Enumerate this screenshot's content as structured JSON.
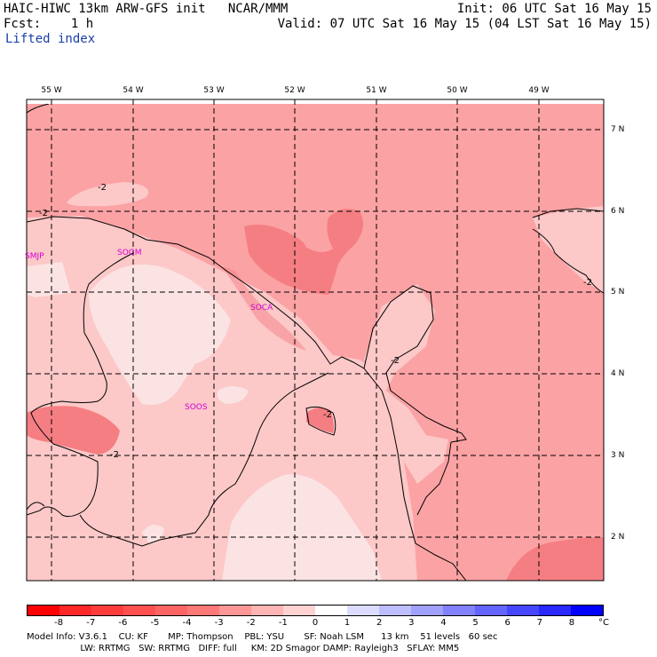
{
  "header": {
    "left_line1": "HAIC-HIWC 13km ARW-GFS init   NCAR/MMM",
    "left_line2": "Fcst:    1 h",
    "left_line3": "Lifted index",
    "right_line1": "Init: 06 UTC Sat 16 May 15",
    "right_line2": "Valid: 07 UTC Sat 16 May 15 (04 LST Sat 16 May 15)"
  },
  "map": {
    "longitude_labels": [
      "55 W",
      "54 W",
      "53 W",
      "52 W",
      "51 W",
      "50 W",
      "49 W"
    ],
    "latitude_labels": [
      "7 N",
      "6 N",
      "5 N",
      "4 N",
      "3 N",
      "2 N"
    ],
    "stations": [
      "SMJP",
      "SOGM",
      "SOCA",
      "SOOS"
    ],
    "contour_labels": [
      "-2",
      "-2",
      "-2",
      "-2",
      "-2",
      "-2"
    ]
  },
  "legend": {
    "labels": [
      "-8",
      "-7",
      "-6",
      "-5",
      "-4",
      "-3",
      "-2",
      "-1",
      "0",
      "1",
      "2",
      "3",
      "4",
      "5",
      "6",
      "7",
      "8"
    ],
    "unit": "°C",
    "colors": [
      "#ff0000",
      "#ff2828",
      "#ff3c3c",
      "#ff5050",
      "#ff6464",
      "#ff7878",
      "#ff9696",
      "#ffb4b4",
      "#ffd2d2",
      "#ffffff",
      "#dcdcff",
      "#bebeff",
      "#a0a0ff",
      "#8282ff",
      "#6464ff",
      "#4646ff",
      "#2828ff",
      "#0000ff"
    ]
  },
  "footer": {
    "line1": "Model Info: V3.6.1    CU: KF       MP: Thompson    PBL: YSU       SF: Noah LSM      13 km    51 levels   60 sec",
    "line2": "                   LW: RRTMG   SW: RRTMG   DIFF: full     KM: 2D Smagor DAMP: Rayleigh3   SFLAY: MM5"
  },
  "colors": {
    "field_dark": "#f47e82",
    "field_medium": "#fba2a4",
    "field_light": "#fcc8c8",
    "field_lightest": "#fbe3e3",
    "station": "#d400d4",
    "header_blue": "#1a3ea8"
  }
}
